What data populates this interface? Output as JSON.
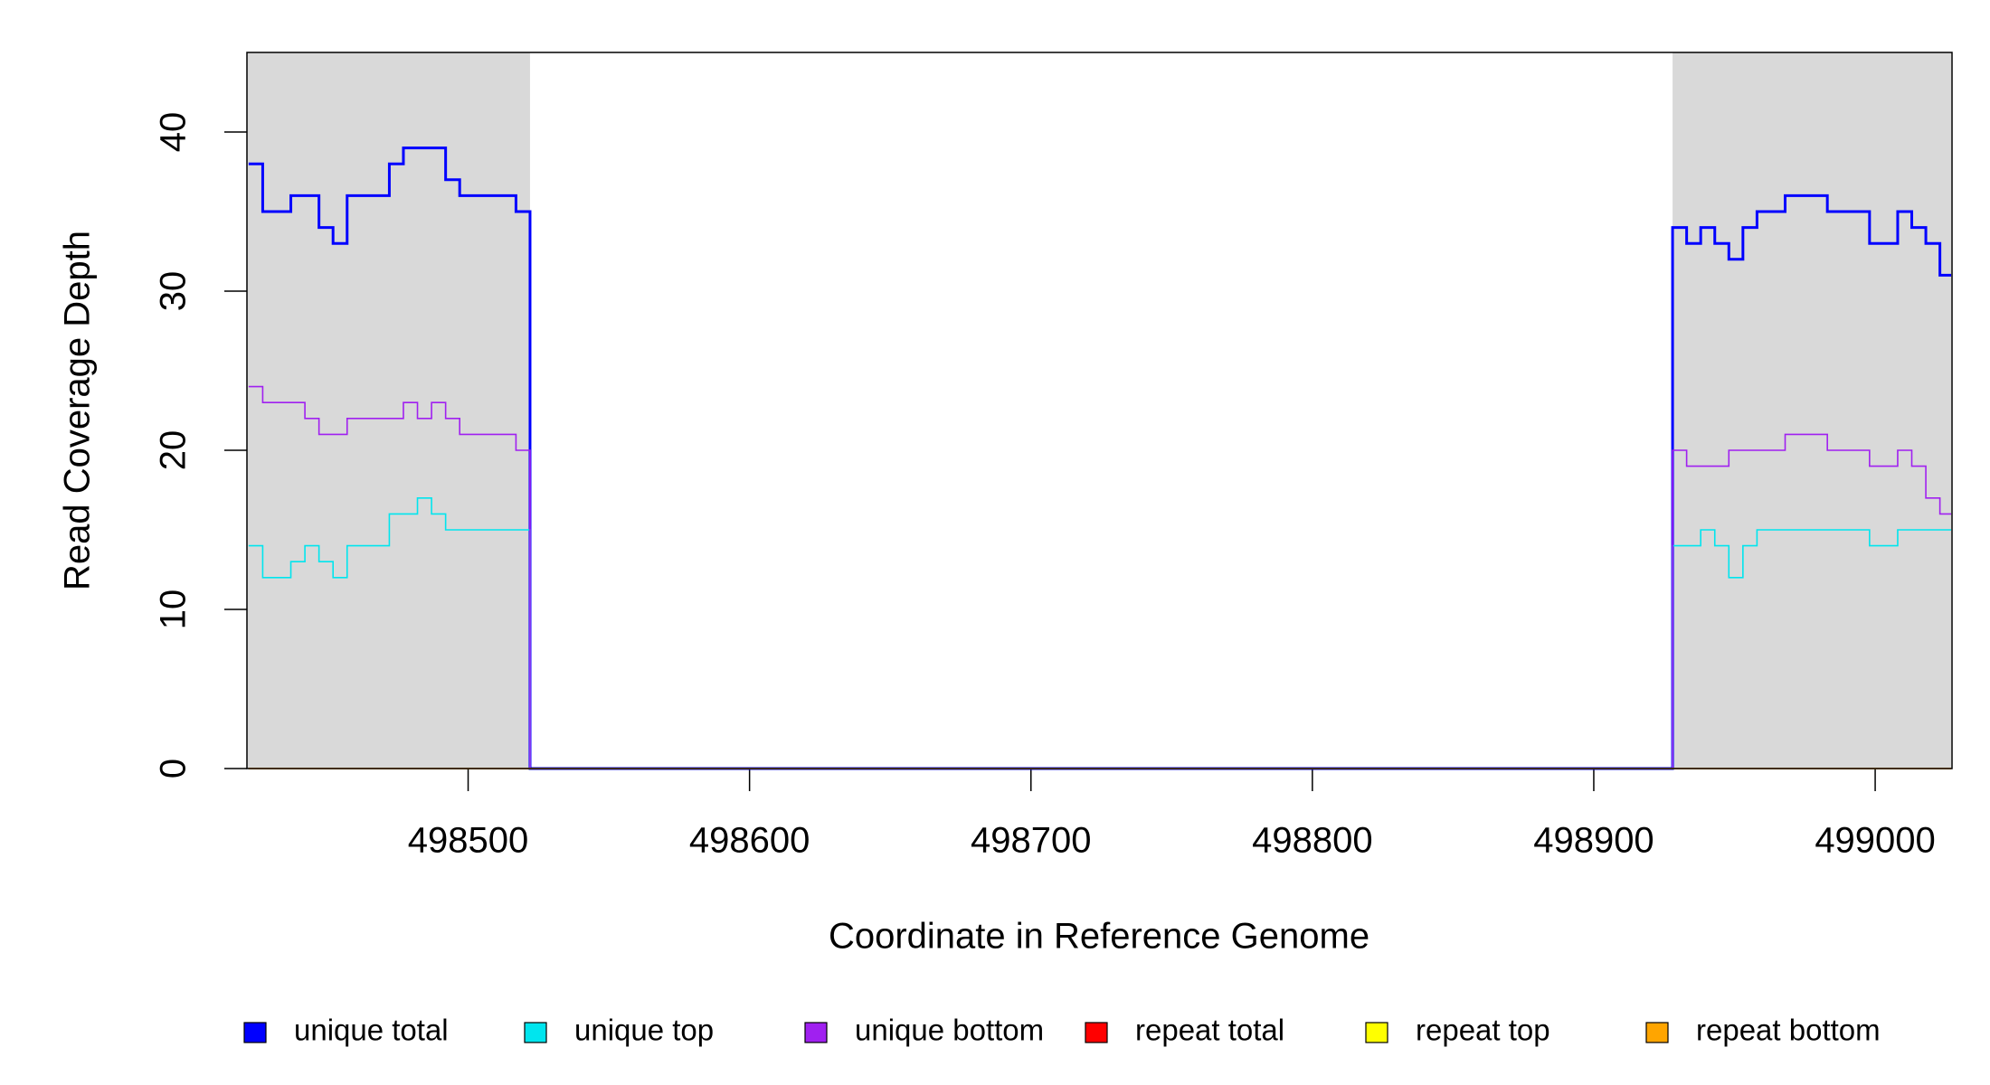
{
  "chart_data": {
    "type": "step-line",
    "y_label": "Read Coverage Depth",
    "x_label": "Coordinate in Reference Genome",
    "x": [
      498422,
      498427,
      498432,
      498437,
      498442,
      498447,
      498452,
      498457,
      498462,
      498467,
      498472,
      498477,
      498482,
      498487,
      498492,
      498497,
      498502,
      498507,
      498512,
      498517,
      498522,
      498928,
      498933,
      498938,
      498943,
      498948,
      498953,
      498958,
      498963,
      498968,
      498973,
      498978,
      498983,
      498988,
      498993,
      498998,
      499003,
      499008,
      499013,
      499018,
      499023,
      499027
    ],
    "series": [
      {
        "name": "unique total",
        "color": "#0000ff",
        "values": [
          38,
          35,
          35,
          36,
          36,
          34,
          33,
          36,
          36,
          36,
          38,
          39,
          39,
          39,
          37,
          36,
          36,
          36,
          36,
          35,
          0,
          34,
          33,
          34,
          33,
          32,
          34,
          35,
          35,
          36,
          36,
          36,
          35,
          35,
          35,
          33,
          33,
          35,
          34,
          33,
          31,
          31
        ]
      },
      {
        "name": "unique top",
        "color": "#00e5ee",
        "values": [
          14,
          12,
          12,
          13,
          14,
          13,
          12,
          14,
          14,
          14,
          16,
          16,
          17,
          16,
          15,
          15,
          15,
          15,
          15,
          15,
          0,
          14,
          14,
          15,
          14,
          12,
          14,
          15,
          15,
          15,
          15,
          15,
          15,
          15,
          15,
          14,
          14,
          15,
          15,
          15,
          15,
          15
        ]
      },
      {
        "name": "unique bottom",
        "color": "#a020f0",
        "values": [
          24,
          23,
          23,
          23,
          22,
          21,
          21,
          22,
          22,
          22,
          22,
          23,
          22,
          23,
          22,
          21,
          21,
          21,
          21,
          20,
          0,
          20,
          19,
          19,
          19,
          20,
          20,
          20,
          20,
          21,
          21,
          21,
          20,
          20,
          20,
          19,
          19,
          20,
          19,
          17,
          16,
          16
        ]
      },
      {
        "name": "repeat total",
        "color": "#ff0000",
        "values": [
          0,
          0,
          0,
          0,
          0,
          0,
          0,
          0,
          0,
          0,
          0,
          0,
          0,
          0,
          0,
          0,
          0,
          0,
          0,
          0,
          0,
          0,
          0,
          0,
          0,
          0,
          0,
          0,
          0,
          0,
          0,
          0,
          0,
          0,
          0,
          0,
          0,
          0,
          0,
          0,
          0,
          0
        ]
      },
      {
        "name": "repeat top",
        "color": "#ffff00",
        "values": [
          0,
          0,
          0,
          0,
          0,
          0,
          0,
          0,
          0,
          0,
          0,
          0,
          0,
          0,
          0,
          0,
          0,
          0,
          0,
          0,
          0,
          0,
          0,
          0,
          0,
          0,
          0,
          0,
          0,
          0,
          0,
          0,
          0,
          0,
          0,
          0,
          0,
          0,
          0,
          0,
          0,
          0
        ]
      },
      {
        "name": "repeat bottom",
        "color": "#ffa500",
        "values": [
          0,
          0,
          0,
          0,
          0,
          0,
          0,
          0,
          0,
          0,
          0,
          0,
          0,
          0,
          0,
          0,
          0,
          0,
          0,
          0,
          0,
          0,
          0,
          0,
          0,
          0,
          0,
          0,
          0,
          0,
          0,
          0,
          0,
          0,
          0,
          0,
          0,
          0,
          0,
          0,
          0,
          0
        ]
      }
    ],
    "shaded_ranges": [
      [
        498421,
        498522
      ],
      [
        498928,
        499027
      ]
    ],
    "shade_color": "#d9d9d9",
    "xlim": [
      498421.4,
      499027.3
    ],
    "xticks": [
      498500,
      498600,
      498700,
      498800,
      498900,
      499000
    ],
    "ylim": [
      0,
      45
    ],
    "yticks": [
      0,
      10,
      20,
      30,
      40
    ]
  }
}
